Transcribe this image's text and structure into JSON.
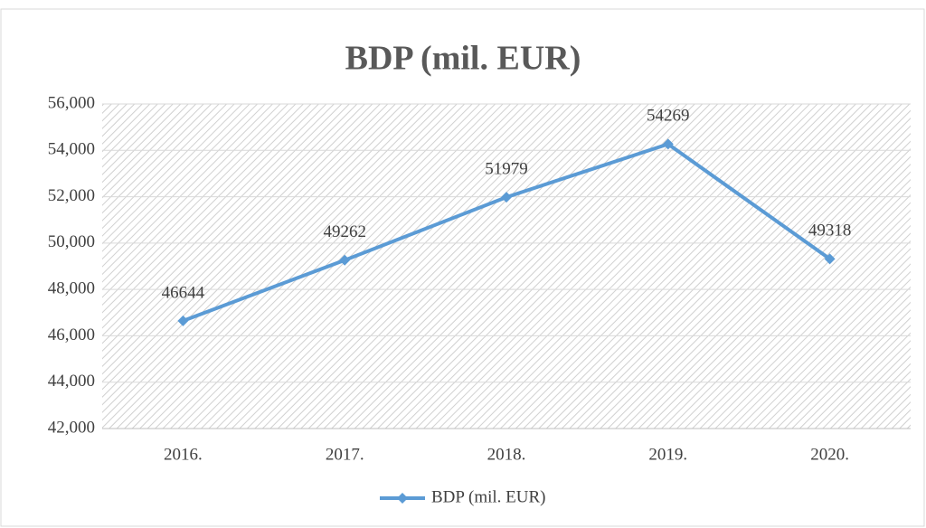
{
  "chart_data": {
    "type": "line",
    "title": "BDP (mil. EUR)",
    "categories": [
      "2016.",
      "2017.",
      "2018.",
      "2019.",
      "2020."
    ],
    "series": [
      {
        "name": "BDP (mil. EUR)",
        "color": "#5b9bd5",
        "values": [
          46644,
          49262,
          51979,
          54269,
          49318
        ]
      }
    ],
    "ylim": [
      42000,
      56000
    ],
    "yticks": [
      {
        "value": 42000,
        "label": "42,000"
      },
      {
        "value": 44000,
        "label": "44,000"
      },
      {
        "value": 46000,
        "label": "46,000"
      },
      {
        "value": 48000,
        "label": "48,000"
      },
      {
        "value": 50000,
        "label": "50,000"
      },
      {
        "value": 52000,
        "label": "52,000"
      },
      {
        "value": 54000,
        "label": "54,000"
      },
      {
        "value": 56000,
        "label": "56,000"
      }
    ],
    "grid": true,
    "legend": "bottom",
    "data_labels": true
  }
}
